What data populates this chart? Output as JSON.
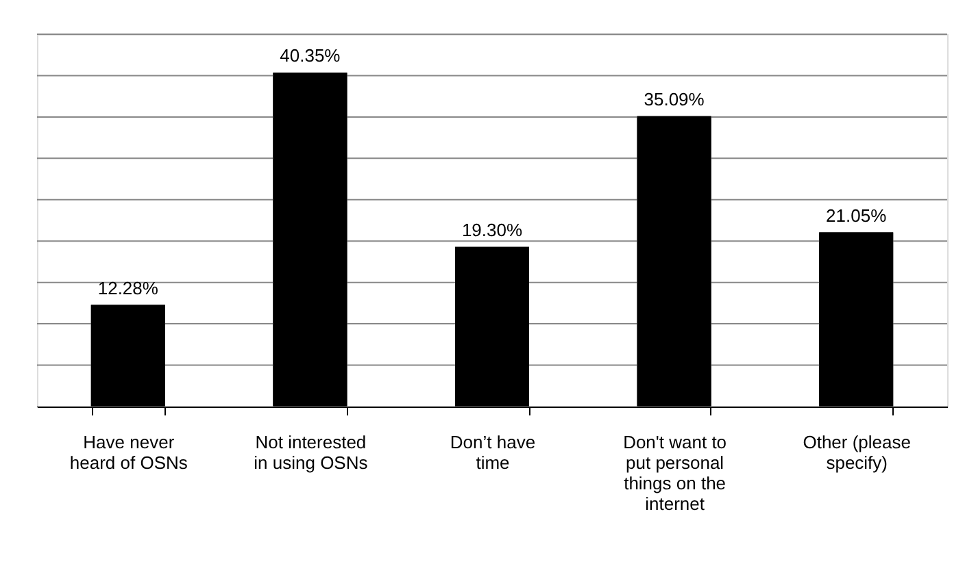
{
  "chart_data": {
    "type": "bar",
    "categories": [
      "Have never heard of OSNs",
      "Not interested in using OSNs",
      "Don’t have time",
      "Don't want to put personal things on the internet",
      "Other (please specify)"
    ],
    "values": [
      12.28,
      40.35,
      19.3,
      35.09,
      21.05
    ],
    "value_labels": [
      "12.28%",
      "40.35%",
      "19.30%",
      "35.09%",
      "21.05%"
    ],
    "color": "#000000",
    "ylim": [
      0,
      45
    ],
    "yticks": [
      {
        "value": 0,
        "label": null
      },
      {
        "value": 5,
        "label": null
      },
      {
        "value": 10,
        "label": null
      },
      {
        "value": 15,
        "label": null
      },
      {
        "value": 20,
        "label": null
      },
      {
        "value": 25,
        "label": null
      },
      {
        "value": 30,
        "label": null
      },
      {
        "value": 35,
        "label": null
      },
      {
        "value": 40,
        "label": null
      },
      {
        "value": 45,
        "label": null
      }
    ],
    "tick_labels": "x",
    "grid": "y"
  }
}
